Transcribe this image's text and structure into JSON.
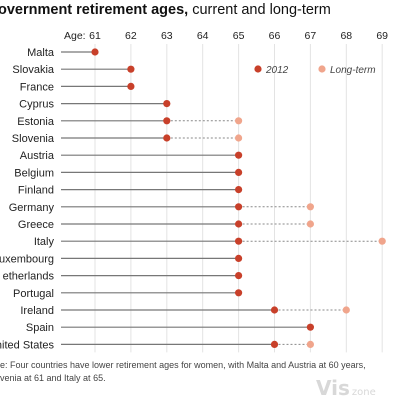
{
  "title_bold": "overnment retirement ages,",
  "title_rest": " current and long-term",
  "axis_prefix": "Age:",
  "note_lines": [
    "e: Four countries have lower retirement ages for women, with Malta and Austria at 60 years,",
    "venia at 61 and Italy at 65."
  ],
  "watermark": "Vis",
  "watermark_small": "zone",
  "colors": {
    "current": "#c8402a",
    "long_term": "#f0a58c",
    "axis_line": "#777777",
    "dotted_line": "#888888"
  },
  "chart_data": {
    "type": "dot-plot",
    "title": "overnment retirement ages, current and long-term",
    "xlim": [
      61,
      69
    ],
    "x_ticks": [
      61,
      62,
      63,
      64,
      65,
      66,
      67,
      68,
      69
    ],
    "grid": true,
    "legend_position": "top-right",
    "series": [
      {
        "name": "2012",
        "key": "current"
      },
      {
        "name": "Long-term",
        "key": "long_term"
      }
    ],
    "rows": [
      {
        "country": "Malta",
        "current": 61,
        "long_term": null
      },
      {
        "country": "Slovakia",
        "current": 62,
        "long_term": null
      },
      {
        "country": "France",
        "current": 62,
        "long_term": null
      },
      {
        "country": "Cyprus",
        "current": 63,
        "long_term": null
      },
      {
        "country": "Estonia",
        "current": 63,
        "long_term": 65
      },
      {
        "country": "Slovenia",
        "current": 63,
        "long_term": 65
      },
      {
        "country": "Austria",
        "current": 65,
        "long_term": null
      },
      {
        "country": "Belgium",
        "current": 65,
        "long_term": null
      },
      {
        "country": "Finland",
        "current": 65,
        "long_term": null
      },
      {
        "country": "Germany",
        "current": 65,
        "long_term": 67
      },
      {
        "country": "Greece",
        "current": 65,
        "long_term": 67
      },
      {
        "country": "Italy",
        "current": 65,
        "long_term": 69
      },
      {
        "country": "uxembourg",
        "current": 65,
        "long_term": null
      },
      {
        "country": "etherlands",
        "current": 65,
        "long_term": null
      },
      {
        "country": "Portugal",
        "current": 65,
        "long_term": null
      },
      {
        "country": "Ireland",
        "current": 66,
        "long_term": 68
      },
      {
        "country": "Spain",
        "current": 67,
        "long_term": null
      },
      {
        "country": "nited States",
        "current": 66,
        "long_term": 67
      }
    ]
  }
}
